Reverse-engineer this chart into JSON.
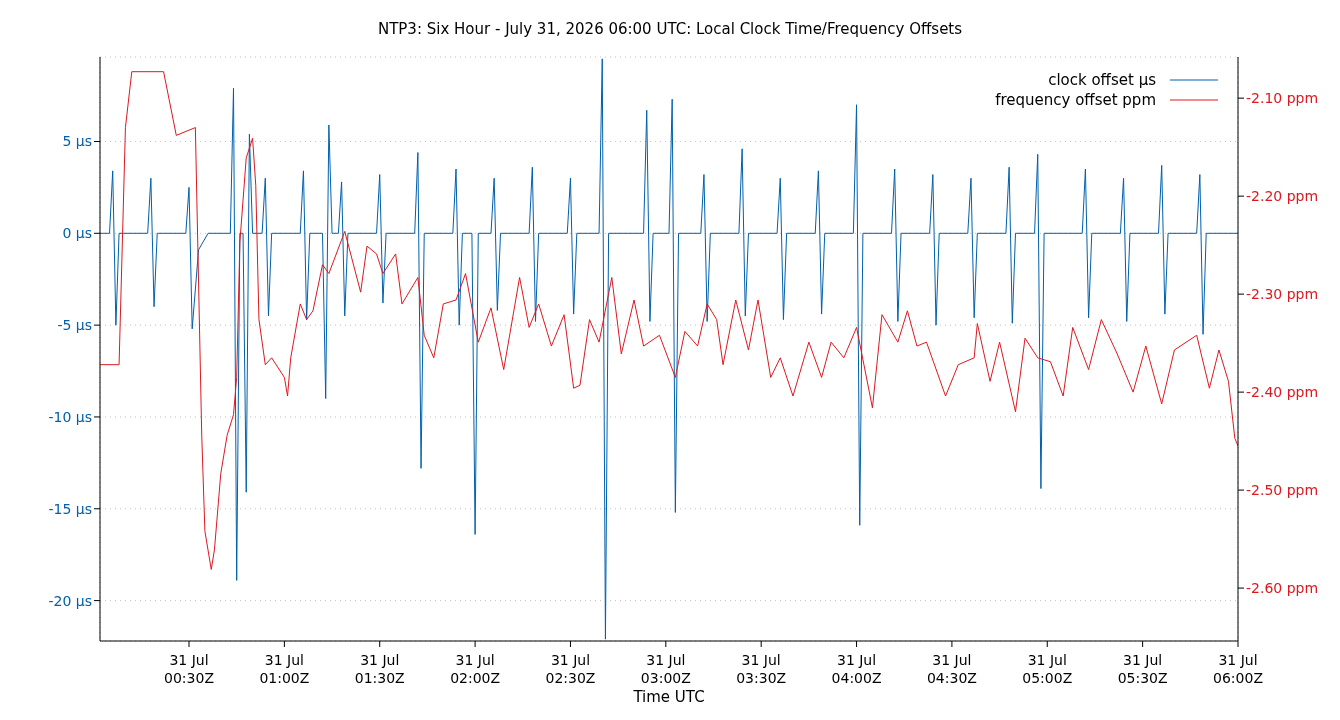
{
  "chart_data": {
    "type": "line",
    "title": "NTP3: Six Hour - July 31, 2026 06:00 UTC: Local Clock Time/Frequency Offsets",
    "xlabel": "Time UTC",
    "xlim": [
      "2026-07-31T00:02",
      "2026-07-31T06:00"
    ],
    "xticks": [
      {
        "value": "2026-07-31T00:30",
        "label": "31 Jul\n00:30Z"
      },
      {
        "value": "2026-07-31T01:00",
        "label": "31 Jul\n01:00Z"
      },
      {
        "value": "2026-07-31T01:30",
        "label": "31 Jul\n01:30Z"
      },
      {
        "value": "2026-07-31T02:00",
        "label": "31 Jul\n02:00Z"
      },
      {
        "value": "2026-07-31T02:30",
        "label": "31 Jul\n02:30Z"
      },
      {
        "value": "2026-07-31T03:00",
        "label": "31 Jul\n03:00Z"
      },
      {
        "value": "2026-07-31T03:30",
        "label": "31 Jul\n03:30Z"
      },
      {
        "value": "2026-07-31T04:00",
        "label": "31 Jul\n04:00Z"
      },
      {
        "value": "2026-07-31T04:30",
        "label": "31 Jul\n04:30Z"
      },
      {
        "value": "2026-07-31T05:00",
        "label": "31 Jul\n05:00Z"
      },
      {
        "value": "2026-07-31T05:30",
        "label": "31 Jul\n05:30Z"
      },
      {
        "value": "2026-07-31T06:00",
        "label": "31 Jul\n06:00Z"
      }
    ],
    "ylim": [
      -22.2,
      9.6
    ],
    "yticks": [
      {
        "value": -20,
        "label": "-20 µs"
      },
      {
        "value": -15,
        "label": "-15 µs"
      },
      {
        "value": -10,
        "label": "-10 µs"
      },
      {
        "value": -5,
        "label": "-5 µs"
      },
      {
        "value": 0,
        "label": "0 µs"
      },
      {
        "value": 5,
        "label": "5 µs"
      }
    ],
    "y2lim": [
      -2.654,
      -2.058
    ],
    "y2ticks": [
      {
        "value": -2.6,
        "label": "-2.60 ppm"
      },
      {
        "value": -2.5,
        "label": "-2.50 ppm"
      },
      {
        "value": -2.4,
        "label": "-2.40 ppm"
      },
      {
        "value": -2.3,
        "label": "-2.30 ppm"
      },
      {
        "value": -2.2,
        "label": "-2.20 ppm"
      },
      {
        "value": -2.1,
        "label": "-2.10 ppm"
      }
    ],
    "grid": true,
    "legend": "top right",
    "line_style": "solid",
    "series": [
      {
        "name": "clock offset µs",
        "color": "#0060ad",
        "axis": "y",
        "x": [
          "2026-07-31T00:02",
          "2026-07-31T00:05",
          "2026-07-31T00:06",
          "2026-07-31T00:07",
          "2026-07-31T00:08",
          "2026-07-31T00:17",
          "2026-07-31T00:18",
          "2026-07-31T00:19",
          "2026-07-31T00:20",
          "2026-07-31T00:29",
          "2026-07-31T00:30",
          "2026-07-31T00:31",
          "2026-07-31T00:33",
          "2026-07-31T00:36",
          "2026-07-31T00:43",
          "2026-07-31T00:44",
          "2026-07-31T00:45",
          "2026-07-31T00:46",
          "2026-07-31T00:47",
          "2026-07-31T00:48",
          "2026-07-31T00:49",
          "2026-07-31T00:50",
          "2026-07-31T00:53",
          "2026-07-31T00:54",
          "2026-07-31T00:55",
          "2026-07-31T00:56",
          "2026-07-31T01:05",
          "2026-07-31T01:06",
          "2026-07-31T01:07",
          "2026-07-31T01:08",
          "2026-07-31T01:12",
          "2026-07-31T01:13",
          "2026-07-31T01:14",
          "2026-07-31T01:15",
          "2026-07-31T01:17",
          "2026-07-31T01:18",
          "2026-07-31T01:19",
          "2026-07-31T01:20",
          "2026-07-31T01:29",
          "2026-07-31T01:30",
          "2026-07-31T01:31",
          "2026-07-31T01:32",
          "2026-07-31T01:41",
          "2026-07-31T01:42",
          "2026-07-31T01:43",
          "2026-07-31T01:44",
          "2026-07-31T01:53",
          "2026-07-31T01:54",
          "2026-07-31T01:55",
          "2026-07-31T01:56",
          "2026-07-31T01:59",
          "2026-07-31T02:00",
          "2026-07-31T02:01",
          "2026-07-31T02:05",
          "2026-07-31T02:06",
          "2026-07-31T02:07",
          "2026-07-31T02:08",
          "2026-07-31T02:17",
          "2026-07-31T02:18",
          "2026-07-31T02:19",
          "2026-07-31T02:20",
          "2026-07-31T02:29",
          "2026-07-31T02:30",
          "2026-07-31T02:31",
          "2026-07-31T02:32",
          "2026-07-31T02:39",
          "2026-07-31T02:40",
          "2026-07-31T02:41",
          "2026-07-31T02:42",
          "2026-07-31T02:53",
          "2026-07-31T02:54",
          "2026-07-31T02:55",
          "2026-07-31T02:56",
          "2026-07-31T03:01",
          "2026-07-31T03:02",
          "2026-07-31T03:03",
          "2026-07-31T03:04",
          "2026-07-31T03:11",
          "2026-07-31T03:12",
          "2026-07-31T03:13",
          "2026-07-31T03:14",
          "2026-07-31T03:23",
          "2026-07-31T03:24",
          "2026-07-31T03:25",
          "2026-07-31T03:26",
          "2026-07-31T03:35",
          "2026-07-31T03:36",
          "2026-07-31T03:37",
          "2026-07-31T03:38",
          "2026-07-31T03:47",
          "2026-07-31T03:48",
          "2026-07-31T03:49",
          "2026-07-31T03:50",
          "2026-07-31T03:59",
          "2026-07-31T04:00",
          "2026-07-31T04:01",
          "2026-07-31T04:02",
          "2026-07-31T04:11",
          "2026-07-31T04:12",
          "2026-07-31T04:13",
          "2026-07-31T04:14",
          "2026-07-31T04:23",
          "2026-07-31T04:24",
          "2026-07-31T04:25",
          "2026-07-31T04:26",
          "2026-07-31T04:35",
          "2026-07-31T04:36",
          "2026-07-31T04:37",
          "2026-07-31T04:38",
          "2026-07-31T04:47",
          "2026-07-31T04:48",
          "2026-07-31T04:49",
          "2026-07-31T04:50",
          "2026-07-31T04:56",
          "2026-07-31T04:57",
          "2026-07-31T04:58",
          "2026-07-31T04:59",
          "2026-07-31T05:11",
          "2026-07-31T05:12",
          "2026-07-31T05:13",
          "2026-07-31T05:14",
          "2026-07-31T05:23",
          "2026-07-31T05:24",
          "2026-07-31T05:25",
          "2026-07-31T05:26",
          "2026-07-31T05:35",
          "2026-07-31T05:36",
          "2026-07-31T05:37",
          "2026-07-31T05:38",
          "2026-07-31T05:47",
          "2026-07-31T05:48",
          "2026-07-31T05:49",
          "2026-07-31T05:50",
          "2026-07-31T06:00"
        ],
        "values": [
          0,
          0,
          3.4,
          -5.0,
          0,
          0,
          3.0,
          -4.0,
          0,
          0,
          2.5,
          -5.2,
          -0.9,
          0,
          0,
          7.9,
          -18.9,
          0,
          0,
          -14.1,
          5.4,
          0,
          0,
          3.0,
          -4.5,
          0,
          0,
          3.4,
          -4.7,
          0,
          0,
          -9.0,
          5.9,
          0,
          0,
          2.8,
          -4.5,
          0,
          0,
          3.2,
          -3.8,
          0,
          0,
          4.4,
          -12.8,
          0,
          0,
          3.5,
          -5.0,
          0,
          0,
          -16.4,
          0,
          0,
          3.0,
          -4.2,
          0,
          0,
          3.6,
          -4.8,
          0,
          0,
          3.0,
          -4.4,
          0,
          0,
          9.5,
          -22.1,
          0,
          0,
          6.7,
          -4.8,
          0,
          0,
          7.3,
          -15.2,
          0,
          0,
          3.2,
          -4.8,
          0,
          0,
          4.6,
          -4.5,
          0,
          0,
          3.0,
          -4.7,
          0,
          0,
          3.4,
          -4.4,
          0,
          0,
          7.0,
          -15.9,
          0,
          0,
          3.5,
          -4.8,
          0,
          0,
          3.2,
          -5.0,
          0,
          0,
          3.0,
          -4.6,
          0,
          0,
          3.6,
          -4.9,
          0,
          0,
          4.3,
          -13.9,
          0,
          0,
          3.5,
          -4.6,
          0,
          0,
          3.0,
          -4.8,
          0,
          0,
          3.7,
          -4.4,
          0,
          0,
          3.2,
          -5.5,
          0,
          0
        ]
      },
      {
        "name": "frequency offset ppm",
        "color": "#dd181f",
        "axis": "y2",
        "x": [
          "2026-07-31T00:02",
          "2026-07-31T00:08",
          "2026-07-31T00:10",
          "2026-07-31T00:12",
          "2026-07-31T00:22",
          "2026-07-31T00:26",
          "2026-07-31T00:32",
          "2026-07-31T00:34",
          "2026-07-31T00:35",
          "2026-07-31T00:37",
          "2026-07-31T00:38",
          "2026-07-31T00:40",
          "2026-07-31T00:42",
          "2026-07-31T00:44",
          "2026-07-31T00:45",
          "2026-07-31T00:46",
          "2026-07-31T00:48",
          "2026-07-31T00:50",
          "2026-07-31T00:51",
          "2026-07-31T00:52",
          "2026-07-31T00:54",
          "2026-07-31T00:56",
          "2026-07-31T01:00",
          "2026-07-31T01:01",
          "2026-07-31T01:02",
          "2026-07-31T01:05",
          "2026-07-31T01:07",
          "2026-07-31T01:09",
          "2026-07-31T01:12",
          "2026-07-31T01:14",
          "2026-07-31T01:19",
          "2026-07-31T01:24",
          "2026-07-31T01:26",
          "2026-07-31T01:29",
          "2026-07-31T01:31",
          "2026-07-31T01:35",
          "2026-07-31T01:37",
          "2026-07-31T01:42",
          "2026-07-31T01:44",
          "2026-07-31T01:47",
          "2026-07-31T01:50",
          "2026-07-31T01:54",
          "2026-07-31T01:57",
          "2026-07-31T02:01",
          "2026-07-31T02:05",
          "2026-07-31T02:09",
          "2026-07-31T02:14",
          "2026-07-31T02:17",
          "2026-07-31T02:20",
          "2026-07-31T02:24",
          "2026-07-31T02:28",
          "2026-07-31T02:31",
          "2026-07-31T02:33",
          "2026-07-31T02:36",
          "2026-07-31T02:39",
          "2026-07-31T02:43",
          "2026-07-31T02:46",
          "2026-07-31T02:50",
          "2026-07-31T02:53",
          "2026-07-31T02:58",
          "2026-07-31T03:03",
          "2026-07-31T03:06",
          "2026-07-31T03:10",
          "2026-07-31T03:13",
          "2026-07-31T03:16",
          "2026-07-31T03:18",
          "2026-07-31T03:22",
          "2026-07-31T03:26",
          "2026-07-31T03:29",
          "2026-07-31T03:33",
          "2026-07-31T03:36",
          "2026-07-31T03:40",
          "2026-07-31T03:45",
          "2026-07-31T03:49",
          "2026-07-31T03:52",
          "2026-07-31T03:56",
          "2026-07-31T04:00",
          "2026-07-31T04:05",
          "2026-07-31T04:08",
          "2026-07-31T04:13",
          "2026-07-31T04:16",
          "2026-07-31T04:19",
          "2026-07-31T04:22",
          "2026-07-31T04:28",
          "2026-07-31T04:32",
          "2026-07-31T04:37",
          "2026-07-31T04:38",
          "2026-07-31T04:42",
          "2026-07-31T04:45",
          "2026-07-31T04:50",
          "2026-07-31T04:53",
          "2026-07-31T04:57",
          "2026-07-31T05:01",
          "2026-07-31T05:05",
          "2026-07-31T05:08",
          "2026-07-31T05:13",
          "2026-07-31T05:17",
          "2026-07-31T05:22",
          "2026-07-31T05:27",
          "2026-07-31T05:31",
          "2026-07-31T05:36",
          "2026-07-31T05:40",
          "2026-07-31T05:47",
          "2026-07-31T05:51",
          "2026-07-31T05:54",
          "2026-07-31T05:57",
          "2026-07-31T05:59",
          "2026-07-31T06:00"
        ],
        "values": [
          -2.372,
          -2.372,
          -2.13,
          -2.073,
          -2.073,
          -2.138,
          -2.13,
          -2.444,
          -2.542,
          -2.581,
          -2.561,
          -2.483,
          -2.444,
          -2.423,
          -2.385,
          -2.247,
          -2.161,
          -2.141,
          -2.189,
          -2.326,
          -2.372,
          -2.365,
          -2.385,
          -2.404,
          -2.365,
          -2.31,
          -2.326,
          -2.317,
          -2.27,
          -2.279,
          -2.236,
          -2.298,
          -2.251,
          -2.259,
          -2.279,
          -2.259,
          -2.31,
          -2.283,
          -2.342,
          -2.365,
          -2.31,
          -2.306,
          -2.279,
          -2.349,
          -2.314,
          -2.377,
          -2.283,
          -2.334,
          -2.31,
          -2.353,
          -2.321,
          -2.396,
          -2.393,
          -2.326,
          -2.349,
          -2.283,
          -2.361,
          -2.306,
          -2.353,
          -2.342,
          -2.385,
          -2.338,
          -2.353,
          -2.31,
          -2.326,
          -2.372,
          -2.306,
          -2.357,
          -2.306,
          -2.385,
          -2.365,
          -2.404,
          -2.349,
          -2.385,
          -2.349,
          -2.365,
          -2.334,
          -2.416,
          -2.321,
          -2.349,
          -2.317,
          -2.353,
          -2.349,
          -2.404,
          -2.372,
          -2.365,
          -2.33,
          -2.389,
          -2.349,
          -2.42,
          -2.345,
          -2.365,
          -2.369,
          -2.404,
          -2.334,
          -2.377,
          -2.326,
          -2.361,
          -2.4,
          -2.353,
          -2.412,
          -2.357,
          -2.342,
          -2.396,
          -2.357,
          -2.389,
          -2.447,
          -2.455
        ]
      }
    ]
  }
}
